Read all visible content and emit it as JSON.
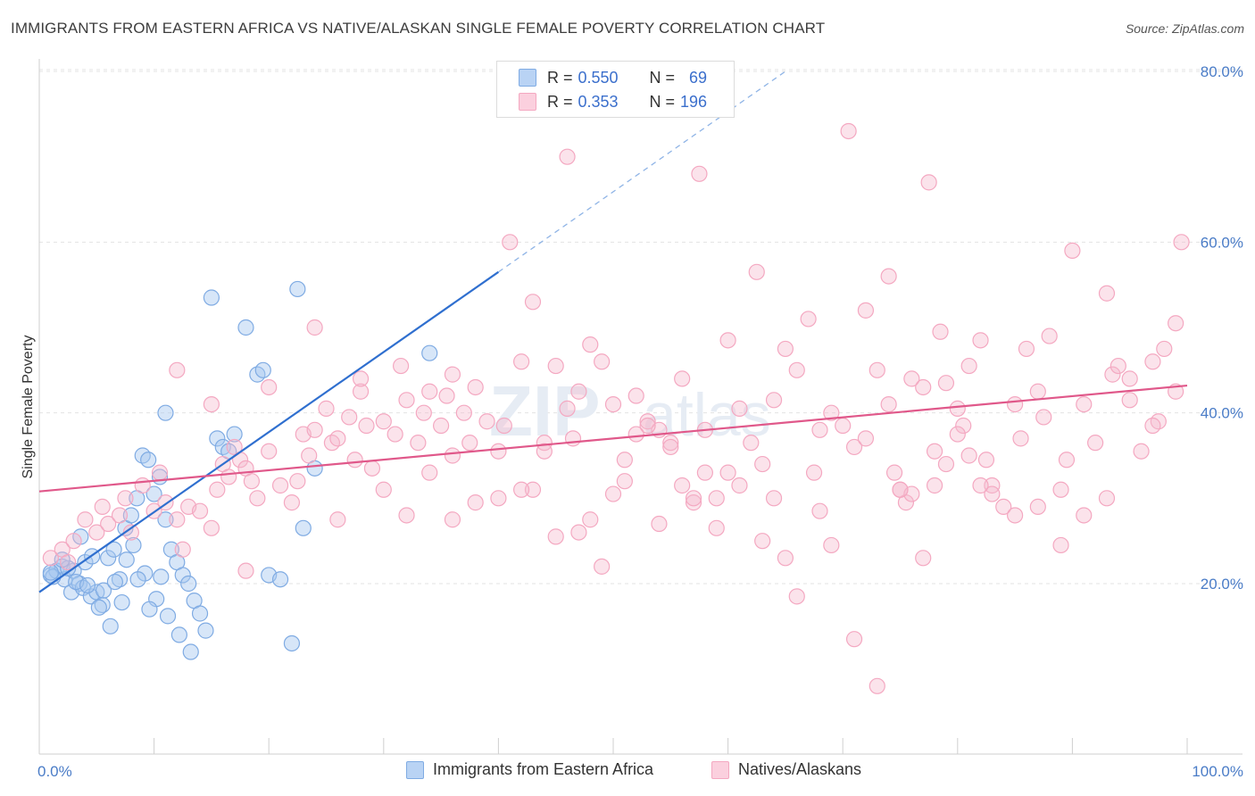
{
  "header": {
    "title": "IMMIGRANTS FROM EASTERN AFRICA VS NATIVE/ALASKAN SINGLE FEMALE POVERTY CORRELATION CHART",
    "source": "Source: ZipAtlas.com"
  },
  "watermark": {
    "zip": "ZIP",
    "atlas": "atlas"
  },
  "legend": {
    "rows": [
      {
        "r_label": "R = ",
        "r_value": "0.550",
        "n_label": "N = ",
        "n_value": "69",
        "color": "#a7c8f0"
      },
      {
        "r_label": "R = ",
        "r_value": "0.353",
        "n_label": "N = ",
        "n_value": "196",
        "color": "#f6b8cc"
      }
    ]
  },
  "chart_data": {
    "type": "scatter",
    "xlabel": "",
    "ylabel": "Single Female Poverty",
    "xlim": [
      0,
      100
    ],
    "ylim": [
      0,
      85
    ],
    "x_tick_labels": [
      "0.0%",
      "100.0%"
    ],
    "y_ticks": [
      {
        "value": 20,
        "label": "20.0%"
      },
      {
        "value": 40,
        "label": "40.0%"
      },
      {
        "value": 60,
        "label": "60.0%"
      },
      {
        "value": 80,
        "label": "80.0%"
      }
    ],
    "grid": true,
    "legend_position": "bottom",
    "series": [
      {
        "name": "Immigrants from Eastern Africa",
        "color": "#7fabe3",
        "line_color": "#2f6fcf",
        "trend": {
          "x0": 0,
          "y0": 19.0,
          "x1": 40,
          "y1": 56.5,
          "dash_to_x": 65,
          "dash_to_y": 80.0
        },
        "points": [
          [
            1,
            21.0
          ],
          [
            1.5,
            21.5
          ],
          [
            2,
            22.0
          ],
          [
            2.2,
            20.5
          ],
          [
            2.8,
            19.0
          ],
          [
            3,
            21.5
          ],
          [
            3.5,
            20.0
          ],
          [
            3.8,
            19.5
          ],
          [
            4,
            22.5
          ],
          [
            4.5,
            18.5
          ],
          [
            5,
            19.0
          ],
          [
            5.5,
            17.5
          ],
          [
            6,
            23.0
          ],
          [
            6.5,
            24.0
          ],
          [
            7,
            20.5
          ],
          [
            7.5,
            26.5
          ],
          [
            8,
            28.0
          ],
          [
            8.5,
            30.0
          ],
          [
            9,
            35.0
          ],
          [
            9.5,
            34.5
          ],
          [
            10,
            30.5
          ],
          [
            10.5,
            32.5
          ],
          [
            11,
            27.5
          ],
          [
            11.5,
            24.0
          ],
          [
            12,
            22.5
          ],
          [
            12.5,
            21.0
          ],
          [
            13,
            20.0
          ],
          [
            13.5,
            18.0
          ],
          [
            14,
            16.5
          ],
          [
            14.5,
            14.5
          ],
          [
            15,
            53.5
          ],
          [
            15.5,
            37.0
          ],
          [
            16,
            36.0
          ],
          [
            16.5,
            35.5
          ],
          [
            17,
            37.5
          ],
          [
            18,
            50.0
          ],
          [
            19,
            44.5
          ],
          [
            19.5,
            45.0
          ],
          [
            20,
            21.0
          ],
          [
            21,
            20.5
          ],
          [
            22,
            13.0
          ],
          [
            23,
            26.5
          ],
          [
            24,
            33.5
          ],
          [
            11,
            40.0
          ],
          [
            22.5,
            54.5
          ],
          [
            34,
            47.0
          ],
          [
            1.2,
            20.8
          ],
          [
            2.5,
            21.8
          ],
          [
            3.2,
            20.2
          ],
          [
            4.2,
            19.8
          ],
          [
            5.2,
            17.2
          ],
          [
            6.2,
            15.0
          ],
          [
            7.2,
            17.8
          ],
          [
            8.2,
            24.5
          ],
          [
            9.2,
            21.2
          ],
          [
            10.2,
            18.2
          ],
          [
            11.2,
            16.2
          ],
          [
            12.2,
            14.0
          ],
          [
            13.2,
            12.0
          ],
          [
            3.6,
            25.5
          ],
          [
            4.6,
            23.2
          ],
          [
            5.6,
            19.2
          ],
          [
            6.6,
            20.2
          ],
          [
            7.6,
            22.8
          ],
          [
            8.6,
            20.5
          ],
          [
            9.6,
            17.0
          ],
          [
            10.6,
            20.8
          ],
          [
            2.0,
            22.8
          ],
          [
            1.0,
            21.3
          ]
        ]
      },
      {
        "name": "Natives/Alaskans",
        "color": "#f4a8c1",
        "line_color": "#e0588a",
        "trend": {
          "x0": 0,
          "y0": 30.8,
          "x1": 100,
          "y1": 43.2
        },
        "points": [
          [
            1,
            23.0
          ],
          [
            2,
            24.0
          ],
          [
            2.5,
            22.5
          ],
          [
            3,
            25.0
          ],
          [
            4,
            27.5
          ],
          [
            5,
            26.0
          ],
          [
            5.5,
            29.0
          ],
          [
            6,
            27.0
          ],
          [
            7,
            28.0
          ],
          [
            7.5,
            30.0
          ],
          [
            8,
            26.0
          ],
          [
            9,
            31.5
          ],
          [
            10,
            28.5
          ],
          [
            10.5,
            33.0
          ],
          [
            11,
            29.5
          ],
          [
            12,
            27.5
          ],
          [
            12.5,
            24.0
          ],
          [
            13,
            29.0
          ],
          [
            14,
            28.5
          ],
          [
            15,
            26.5
          ],
          [
            15.5,
            31.0
          ],
          [
            16,
            34.0
          ],
          [
            16.5,
            32.5
          ],
          [
            17,
            36.0
          ],
          [
            17.5,
            34.5
          ],
          [
            18,
            33.5
          ],
          [
            18.5,
            32.0
          ],
          [
            19,
            30.0
          ],
          [
            20,
            35.5
          ],
          [
            21,
            31.5
          ],
          [
            22,
            29.5
          ],
          [
            22.5,
            32.0
          ],
          [
            23,
            37.5
          ],
          [
            23.5,
            35.0
          ],
          [
            24,
            38.0
          ],
          [
            25,
            40.5
          ],
          [
            25.5,
            36.5
          ],
          [
            26,
            37.0
          ],
          [
            27,
            39.5
          ],
          [
            27.5,
            34.5
          ],
          [
            28,
            42.5
          ],
          [
            28.5,
            38.5
          ],
          [
            29,
            33.5
          ],
          [
            30,
            39.0
          ],
          [
            31,
            37.5
          ],
          [
            31.5,
            45.5
          ],
          [
            32,
            41.5
          ],
          [
            33,
            36.5
          ],
          [
            33.5,
            40.0
          ],
          [
            34,
            33.0
          ],
          [
            35,
            38.5
          ],
          [
            35.5,
            42.0
          ],
          [
            36,
            44.5
          ],
          [
            37,
            40.0
          ],
          [
            37.5,
            36.5
          ],
          [
            38,
            43.0
          ],
          [
            39,
            39.0
          ],
          [
            40,
            35.5
          ],
          [
            40.5,
            38.5
          ],
          [
            41,
            60.0
          ],
          [
            42,
            46.0
          ],
          [
            43,
            53.0
          ],
          [
            44,
            36.5
          ],
          [
            45,
            45.5
          ],
          [
            46,
            40.5
          ],
          [
            46.5,
            37.0
          ],
          [
            47,
            42.5
          ],
          [
            48,
            48.0
          ],
          [
            49,
            46.0
          ],
          [
            50,
            41.0
          ],
          [
            51,
            34.5
          ],
          [
            52,
            42.0
          ],
          [
            53,
            39.0
          ],
          [
            54,
            38.0
          ],
          [
            55,
            36.5
          ],
          [
            56,
            44.0
          ],
          [
            57,
            29.5
          ],
          [
            58,
            38.0
          ],
          [
            59,
            30.0
          ],
          [
            60,
            33.0
          ],
          [
            61,
            40.5
          ],
          [
            62,
            36.5
          ],
          [
            62.5,
            56.5
          ],
          [
            63,
            34.0
          ],
          [
            64,
            30.0
          ],
          [
            65,
            47.5
          ],
          [
            66,
            45.0
          ],
          [
            67,
            51.0
          ],
          [
            67.5,
            33.0
          ],
          [
            68,
            28.5
          ],
          [
            69,
            40.0
          ],
          [
            70,
            38.5
          ],
          [
            71,
            36.0
          ],
          [
            72,
            52.0
          ],
          [
            73,
            45.0
          ],
          [
            74,
            56.0
          ],
          [
            74.5,
            33.0
          ],
          [
            75,
            31.0
          ],
          [
            75.5,
            29.5
          ],
          [
            76,
            30.5
          ],
          [
            77,
            43.0
          ],
          [
            78,
            31.5
          ],
          [
            78.5,
            49.5
          ],
          [
            79,
            34.0
          ],
          [
            80,
            40.5
          ],
          [
            80.5,
            38.5
          ],
          [
            81,
            45.5
          ],
          [
            82,
            48.5
          ],
          [
            82.5,
            34.5
          ],
          [
            83,
            31.5
          ],
          [
            84,
            29.0
          ],
          [
            85,
            41.0
          ],
          [
            85.5,
            37.0
          ],
          [
            86,
            47.5
          ],
          [
            87,
            42.5
          ],
          [
            87.5,
            39.5
          ],
          [
            88,
            49.0
          ],
          [
            89,
            31.0
          ],
          [
            89.5,
            34.5
          ],
          [
            90,
            59.0
          ],
          [
            91,
            41.0
          ],
          [
            92,
            36.5
          ],
          [
            93,
            54.0
          ],
          [
            93.5,
            44.5
          ],
          [
            94,
            45.5
          ],
          [
            95,
            41.5
          ],
          [
            96,
            35.5
          ],
          [
            97,
            46.0
          ],
          [
            97.5,
            39.0
          ],
          [
            98,
            47.5
          ],
          [
            99,
            50.5
          ],
          [
            99.5,
            60.0
          ],
          [
            70.5,
            73.0
          ],
          [
            77.5,
            67.0
          ],
          [
            57.5,
            68.0
          ],
          [
            46,
            70.0
          ],
          [
            18,
            21.5
          ],
          [
            26,
            27.5
          ],
          [
            32,
            28.0
          ],
          [
            36,
            27.5
          ],
          [
            40,
            30.0
          ],
          [
            43,
            31.0
          ],
          [
            45,
            25.5
          ],
          [
            47,
            26.0
          ],
          [
            49,
            22.0
          ],
          [
            51,
            32.0
          ],
          [
            53,
            38.5
          ],
          [
            55,
            36.0
          ],
          [
            57,
            30.0
          ],
          [
            59,
            26.5
          ],
          [
            61,
            31.5
          ],
          [
            63,
            25.0
          ],
          [
            65,
            23.0
          ],
          [
            66,
            18.5
          ],
          [
            69,
            24.5
          ],
          [
            71,
            13.5
          ],
          [
            73,
            8.0
          ],
          [
            75,
            31.0
          ],
          [
            77,
            23.0
          ],
          [
            79,
            43.5
          ],
          [
            81,
            35.0
          ],
          [
            83,
            30.5
          ],
          [
            85,
            28.0
          ],
          [
            87,
            29.0
          ],
          [
            89,
            24.5
          ],
          [
            91,
            28.0
          ],
          [
            93,
            30.0
          ],
          [
            95,
            44.0
          ],
          [
            97,
            38.5
          ],
          [
            99,
            42.5
          ],
          [
            12,
            45.0
          ],
          [
            15,
            41.0
          ],
          [
            20,
            43.0
          ],
          [
            24,
            50.0
          ],
          [
            28,
            44.0
          ],
          [
            30,
            31.0
          ],
          [
            34,
            42.5
          ],
          [
            36,
            35.0
          ],
          [
            38,
            29.5
          ],
          [
            42,
            31.0
          ],
          [
            44,
            35.5
          ],
          [
            48,
            27.5
          ],
          [
            50,
            30.5
          ],
          [
            52,
            37.5
          ],
          [
            54,
            27.0
          ],
          [
            56,
            31.5
          ],
          [
            58,
            33.0
          ],
          [
            60,
            48.5
          ],
          [
            64,
            41.5
          ],
          [
            68,
            38.0
          ],
          [
            72,
            37.0
          ],
          [
            74,
            41.0
          ],
          [
            76,
            44.0
          ],
          [
            78,
            35.5
          ],
          [
            80,
            37.5
          ],
          [
            82,
            31.5
          ]
        ]
      }
    ]
  }
}
